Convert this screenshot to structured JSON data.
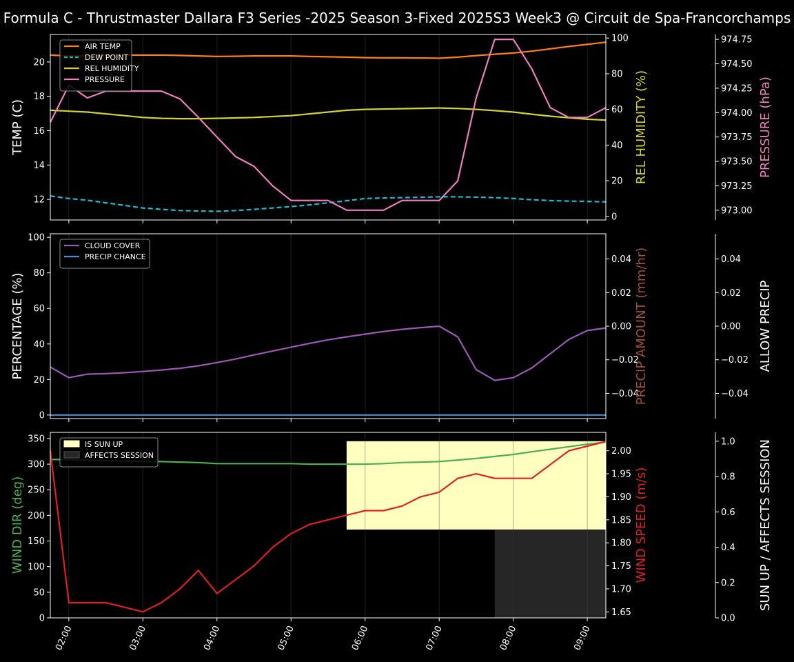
{
  "title": "Formula C - Thrustmaster Dallara F3 Series -2025 Season 3-Fixed 2025S3 Week3 @ Circuit de Spa-Francorchamps",
  "time_ticks": [
    "02:00",
    "03:00",
    "04:00",
    "05:00",
    "06:00",
    "07:00",
    "08:00",
    "09:00"
  ],
  "colors": {
    "air_temp": "#ff7f0e",
    "dew_point": "#17becf",
    "humidity": "#d4d42a",
    "pressure": "#f07fc0",
    "cloud": "#9b59b6",
    "precip_chance": "#4a8fd6",
    "precip_amount": "#a0522d",
    "wind_dir": "#4caf50",
    "wind_speed": "#e02020",
    "sun_up": "#ffffc0",
    "affects": "#262626"
  },
  "chart_data": [
    {
      "type": "line",
      "name": "weather",
      "x": [
        1.75,
        2,
        2.25,
        2.5,
        2.75,
        3,
        3.25,
        3.5,
        3.75,
        4,
        4.25,
        4.5,
        4.75,
        5,
        5.25,
        5.5,
        5.75,
        6,
        6.25,
        6.5,
        6.75,
        7,
        7.25,
        7.5,
        7.75,
        8,
        8.25,
        8.5,
        8.75,
        9,
        9.25
      ],
      "xlim": [
        1.75,
        9.25
      ],
      "ylabel": "TEMP (C)",
      "ylim": [
        10.8,
        21.6
      ],
      "yticks": [
        12,
        14,
        16,
        18,
        20
      ],
      "y2label": "REL HUMIDITY (%)",
      "y2lim": [
        -2,
        102
      ],
      "y2ticks": [
        0,
        20,
        40,
        60,
        80,
        100
      ],
      "y3label": "PRESSURE (hPa)",
      "y3lim": [
        972.9,
        974.8
      ],
      "y3ticks": [
        "973.00",
        "973.25",
        "973.50",
        "973.75",
        "974.00",
        "974.25",
        "974.50",
        "974.75"
      ],
      "legend_loc": "upper-left",
      "series": [
        {
          "name": "AIR TEMP",
          "axis": "y",
          "style": "solid",
          "color_key": "air_temp",
          "values": [
            20.4,
            20.35,
            20.35,
            20.4,
            20.4,
            20.4,
            20.4,
            20.38,
            20.35,
            20.32,
            20.33,
            20.35,
            20.35,
            20.35,
            20.32,
            20.3,
            20.28,
            20.25,
            20.24,
            20.24,
            20.23,
            20.22,
            20.28,
            20.37,
            20.45,
            20.52,
            20.63,
            20.76,
            20.9,
            21.02,
            21.15
          ]
        },
        {
          "name": "DEW POINT",
          "axis": "y",
          "style": "dashed",
          "color_key": "dew_point",
          "values": [
            12.2,
            12.05,
            11.95,
            11.8,
            11.65,
            11.5,
            11.42,
            11.35,
            11.32,
            11.3,
            11.35,
            11.42,
            11.5,
            11.58,
            11.68,
            11.8,
            11.92,
            12.05,
            12.08,
            12.1,
            12.12,
            12.15,
            12.15,
            12.13,
            12.1,
            12.05,
            11.98,
            11.93,
            11.9,
            11.88,
            11.85
          ]
        },
        {
          "name": "REL HUMIDITY",
          "axis": "y2",
          "style": "solid",
          "color_key": "humidity",
          "values": [
            59.5,
            59,
            58.5,
            57.5,
            56.5,
            55.5,
            55,
            54.8,
            54.8,
            55,
            55.2,
            55.5,
            56,
            56.5,
            57.5,
            58.5,
            59.5,
            60,
            60.2,
            60.4,
            60.6,
            60.8,
            60.5,
            60,
            59.3,
            58.5,
            57.3,
            56.2,
            55.3,
            54.5,
            54
          ]
        },
        {
          "name": "PRESSURE",
          "axis": "y3",
          "style": "solid",
          "color_key": "pressure",
          "values": [
            973.9,
            974.28,
            974.15,
            974.22,
            974.22,
            974.22,
            974.22,
            974.14,
            973.95,
            973.75,
            973.55,
            973.45,
            973.25,
            973.1,
            973.1,
            973.1,
            973.0,
            973.0,
            973.0,
            973.1,
            973.1,
            973.1,
            973.3,
            974.15,
            974.75,
            974.75,
            974.45,
            974.05,
            973.95,
            973.95,
            974.05
          ]
        }
      ]
    },
    {
      "type": "line",
      "name": "clouds-precip",
      "xlim": [
        1.75,
        9.25
      ],
      "ylabel": "PERCENTAGE (%)",
      "ylim": [
        -2,
        102
      ],
      "yticks": [
        0,
        20,
        40,
        60,
        80,
        100
      ],
      "y2label": "PRECIP AMOUNT (mm/hr)",
      "y2lim": [
        -0.055,
        0.055
      ],
      "y2ticks": [
        "−0.04",
        "−0.02",
        "0.00",
        "0.02",
        "0.04"
      ],
      "y3label": "ALLOW PRECIP",
      "y3lim": [
        -0.055,
        0.055
      ],
      "y3ticks": [
        "−0.04",
        "−0.02",
        "0.00",
        "0.02",
        "0.04"
      ],
      "legend_loc": "upper-left",
      "series": [
        {
          "name": "CLOUD COVER",
          "axis": "y",
          "style": "solid",
          "color_key": "cloud",
          "values": [
            27,
            21,
            23,
            23.3,
            23.8,
            24.5,
            25.3,
            26.3,
            27.7,
            29.5,
            31.5,
            33.8,
            36,
            38.2,
            40.3,
            42.3,
            44,
            45.5,
            47,
            48.2,
            49.2,
            50,
            44,
            25.5,
            19.5,
            21,
            26.5,
            34.5,
            42.5,
            47.5,
            49
          ]
        },
        {
          "name": "PRECIP CHANCE",
          "axis": "y",
          "style": "solid",
          "color_key": "precip_chance",
          "values": [
            0,
            0,
            0,
            0,
            0,
            0,
            0,
            0,
            0,
            0,
            0,
            0,
            0,
            0,
            0,
            0,
            0,
            0,
            0,
            0,
            0,
            0,
            0,
            0,
            0,
            0,
            0,
            0,
            0,
            0,
            0
          ]
        }
      ]
    },
    {
      "type": "line",
      "name": "wind-sun",
      "xlim": [
        1.75,
        9.25
      ],
      "ylabel": "WIND DIR (deg)",
      "ylim": [
        0,
        362
      ],
      "yticks": [
        0,
        50,
        100,
        150,
        200,
        250,
        300,
        350
      ],
      "y2label": "WIND SPEED (m/s)",
      "y2lim": [
        1.637,
        2.04
      ],
      "y2ticks": [
        "1.65",
        "1.70",
        "1.75",
        "1.80",
        "1.85",
        "1.90",
        "1.95",
        "2.00"
      ],
      "y3label": "SUN UP / AFFECTS SESSION",
      "y3lim": [
        0,
        1.05
      ],
      "y3ticks": [
        "0.0",
        "0.2",
        "0.4",
        "0.6",
        "0.8",
        "1.0"
      ],
      "legend_loc": "upper-left",
      "bands": [
        {
          "name": "IS SUN UP",
          "x_start": 5.75,
          "x_end": 9.25,
          "y_bottom": 0.5,
          "y_top": 1.0,
          "color_key": "sun_up"
        },
        {
          "name": "AFFECTS SESSION",
          "x_start": 7.75,
          "x_end": 9.25,
          "y_bottom": 0,
          "y_top": 0.5,
          "color_key": "affects"
        }
      ],
      "series": [
        {
          "name": "WIND DIR",
          "axis": "y",
          "style": "solid",
          "color_key": "wind_dir",
          "values": [
            309,
            309,
            308,
            307,
            306,
            305,
            305,
            304,
            303,
            301,
            301,
            301,
            301,
            301,
            300,
            300,
            300,
            300,
            301,
            303,
            304,
            305,
            308,
            311,
            315,
            319,
            324,
            329,
            334,
            339,
            343
          ]
        },
        {
          "name": "WIND SPEED",
          "axis": "y2",
          "style": "solid",
          "color_key": "wind_speed",
          "values": [
            2.0,
            1.67,
            1.67,
            1.67,
            1.66,
            1.65,
            1.67,
            1.7,
            1.74,
            1.69,
            1.72,
            1.75,
            1.79,
            1.82,
            1.84,
            1.85,
            1.86,
            1.87,
            1.87,
            1.88,
            1.9,
            1.91,
            1.94,
            1.95,
            1.94,
            1.94,
            1.94,
            1.97,
            2.0,
            2.01,
            2.02
          ]
        }
      ]
    }
  ]
}
